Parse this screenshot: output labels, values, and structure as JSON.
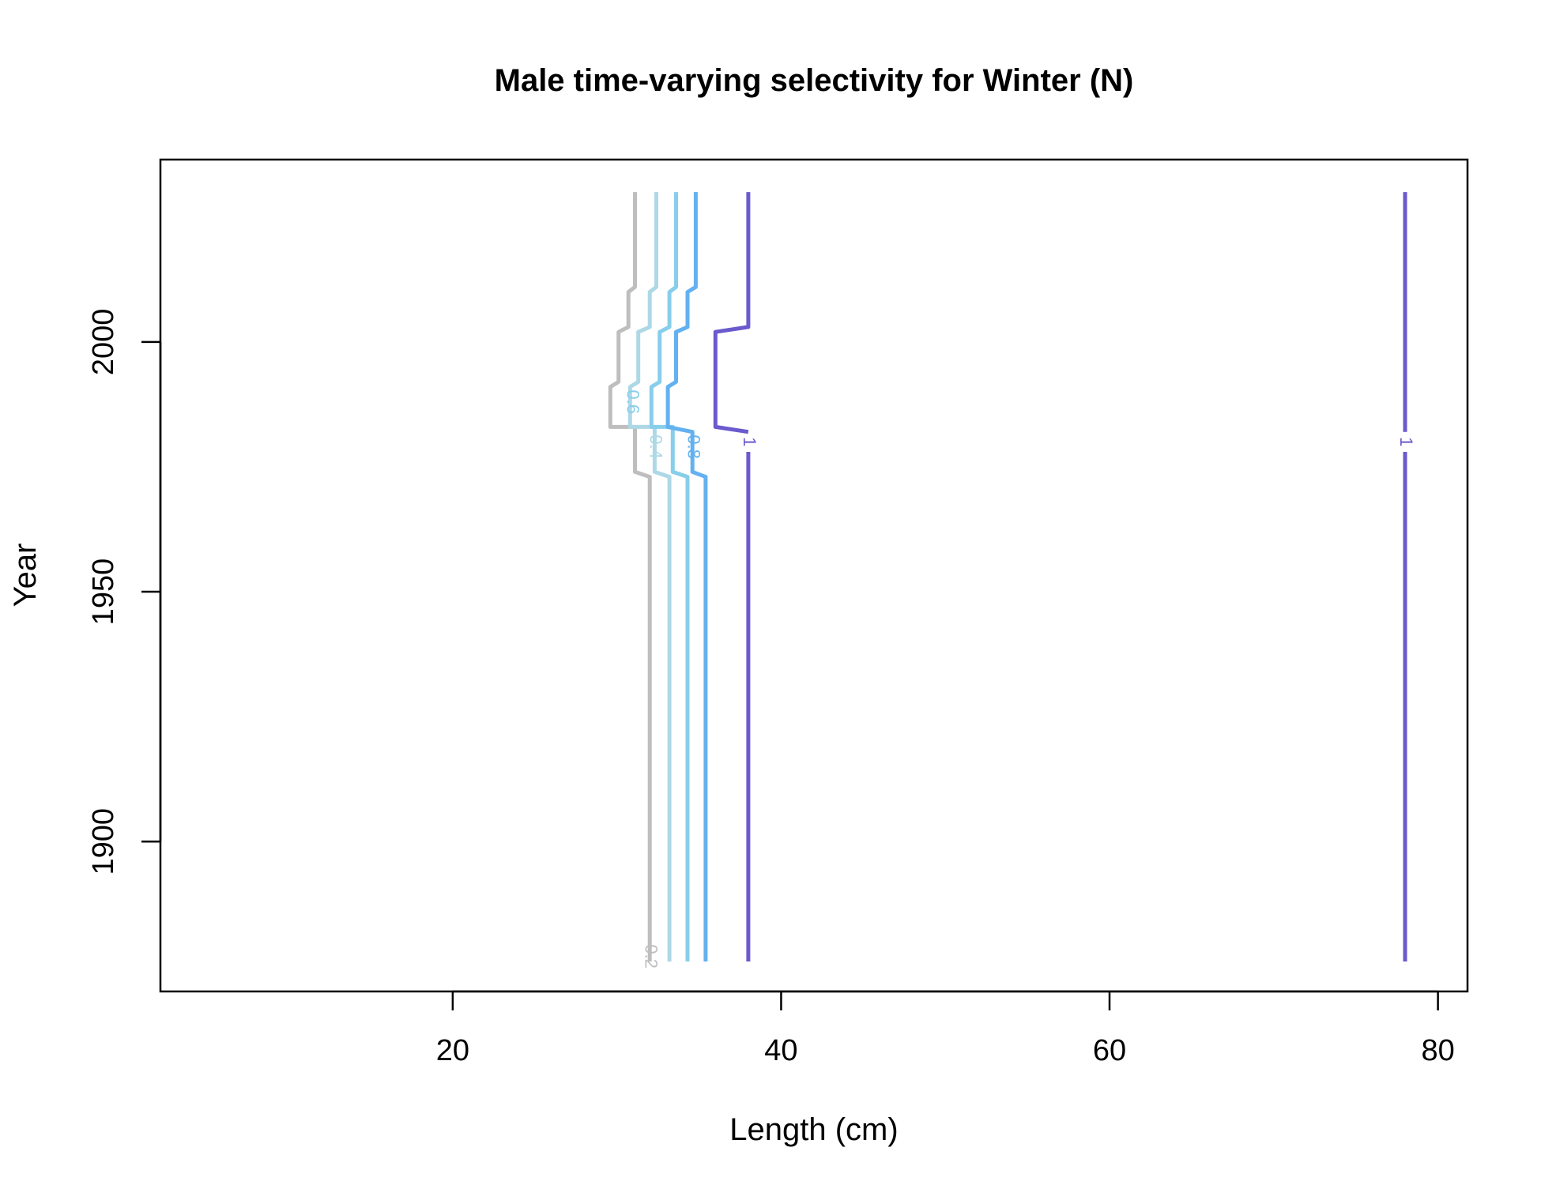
{
  "chart_data": {
    "type": "contour",
    "title": "Male time-varying selectivity for Winter (N)",
    "xlabel": "Length (cm)",
    "ylabel": "Year",
    "xlim": [
      2.2,
      81.8
    ],
    "ylim": [
      1870,
      2036.5
    ],
    "xticks": [
      20,
      40,
      60,
      80
    ],
    "yticks": [
      1900,
      1950,
      2000
    ],
    "grid": false,
    "series": [
      {
        "level": 0.2,
        "label": "0.2",
        "color": "#bebebe",
        "label_pos": [
          32,
          1877
        ],
        "points": [
          [
            32,
            1876
          ],
          [
            32,
            1973
          ],
          [
            31.1,
            1974
          ],
          [
            31.1,
            1983
          ],
          [
            29.6,
            1983
          ],
          [
            29.6,
            1991
          ],
          [
            30.1,
            1992
          ],
          [
            30.1,
            2002
          ],
          [
            30.7,
            2003
          ],
          [
            30.7,
            2010
          ],
          [
            31.1,
            2011
          ],
          [
            31.1,
            2030
          ]
        ]
      },
      {
        "level": 0.4,
        "label": "0.4",
        "color": "#add8e6",
        "label_pos": [
          32.3,
          1979
        ],
        "points": [
          [
            33.2,
            1876
          ],
          [
            33.2,
            1973
          ],
          [
            32.3,
            1974
          ],
          [
            32.3,
            1983
          ],
          [
            30.8,
            1983
          ],
          [
            30.8,
            1991
          ],
          [
            31.3,
            1992
          ],
          [
            31.3,
            2002
          ],
          [
            32.0,
            2003
          ],
          [
            32.0,
            2010
          ],
          [
            32.4,
            2011
          ],
          [
            32.4,
            2030
          ]
        ]
      },
      {
        "level": 0.6,
        "label": "0.6",
        "color": "#87ceeb",
        "label_pos": [
          30.9,
          1988
        ],
        "points": [
          [
            34.3,
            1876
          ],
          [
            34.3,
            1973
          ],
          [
            33.4,
            1974
          ],
          [
            33.4,
            1983
          ],
          [
            32.1,
            1983
          ],
          [
            32.1,
            1991
          ],
          [
            32.6,
            1992
          ],
          [
            32.6,
            2002
          ],
          [
            33.2,
            2003
          ],
          [
            33.2,
            2010
          ],
          [
            33.6,
            2011
          ],
          [
            33.6,
            2030
          ]
        ]
      },
      {
        "level": 0.8,
        "label": "0.8",
        "color": "#63b1f0",
        "label_pos": [
          34.6,
          1979
        ],
        "points": [
          [
            35.4,
            1876
          ],
          [
            35.4,
            1973
          ],
          [
            34.6,
            1974
          ],
          [
            34.6,
            1982
          ],
          [
            33.1,
            1983
          ],
          [
            33.1,
            1991
          ],
          [
            33.6,
            1992
          ],
          [
            33.6,
            2002
          ],
          [
            34.3,
            2003
          ],
          [
            34.3,
            2010
          ],
          [
            34.8,
            2011
          ],
          [
            34.8,
            2030
          ]
        ]
      },
      {
        "level": 1,
        "label": "1",
        "color": "#6a5acd",
        "label_pos": [
          38.0,
          1980
        ],
        "points": [
          [
            38.0,
            1876
          ],
          [
            38.0,
            1978
          ]
        ]
      },
      {
        "level": 1,
        "label": "",
        "color": "#6a5acd",
        "label_pos": null,
        "points": [
          [
            38.0,
            1982
          ],
          [
            36.0,
            1983
          ],
          [
            36.0,
            2002
          ],
          [
            38.0,
            2003
          ],
          [
            38.0,
            2030
          ]
        ]
      },
      {
        "level": 1,
        "label": "1",
        "color": "#6a5acd",
        "label_pos": [
          78.0,
          1980
        ],
        "points": [
          [
            78.0,
            1876
          ],
          [
            78.0,
            1978
          ]
        ]
      },
      {
        "level": 1,
        "label": "",
        "color": "#6a5acd",
        "label_pos": null,
        "points": [
          [
            78.0,
            1982
          ],
          [
            78.0,
            2030
          ]
        ]
      }
    ]
  }
}
